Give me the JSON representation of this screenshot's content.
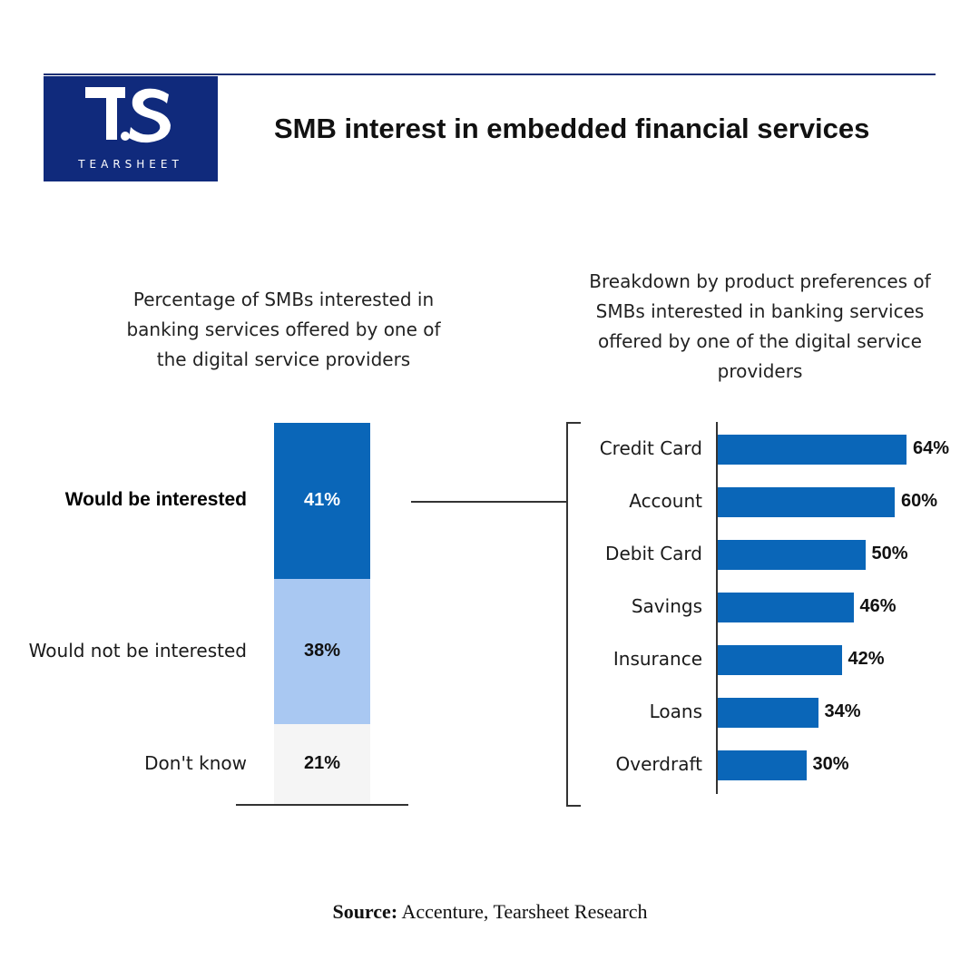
{
  "brand": {
    "mark": "TS",
    "wordmark": "TEARSHEET",
    "color": "#102a7c"
  },
  "header": {
    "title": "SMB interest in embedded financial services"
  },
  "left_panel": {
    "subtitle": "Percentage of SMBs interested in banking services offered by one of the digital service providers"
  },
  "right_panel": {
    "subtitle": "Breakdown by product preferences of SMBs interested in banking services offered by one of the digital service providers"
  },
  "source": {
    "label": "Source:",
    "text": "Accenture, Tearsheet Research"
  },
  "chart_data": [
    {
      "type": "bar",
      "stacked": true,
      "orientation": "vertical",
      "categories": [
        "Would be interested",
        "Would not be interested",
        "Don't know"
      ],
      "values": [
        41,
        38,
        21
      ],
      "labels": [
        "41%",
        "38%",
        "21%"
      ],
      "colors": [
        "#0a66b8",
        "#a9c8f2",
        "#f5f5f5"
      ],
      "title": "Percentage of SMBs interested in banking services offered by one of the digital service providers"
    },
    {
      "type": "bar",
      "orientation": "horizontal",
      "categories": [
        "Credit Card",
        "Account",
        "Debit Card",
        "Savings",
        "Insurance",
        "Loans",
        "Overdraft"
      ],
      "values": [
        64,
        60,
        50,
        46,
        42,
        34,
        30
      ],
      "labels": [
        "64%",
        "60%",
        "50%",
        "46%",
        "42%",
        "34%",
        "30%"
      ],
      "color": "#0a66b8",
      "xlim": [
        0,
        64
      ],
      "title": "Breakdown by product preferences of SMBs interested in banking services offered by one of the digital service providers"
    }
  ]
}
